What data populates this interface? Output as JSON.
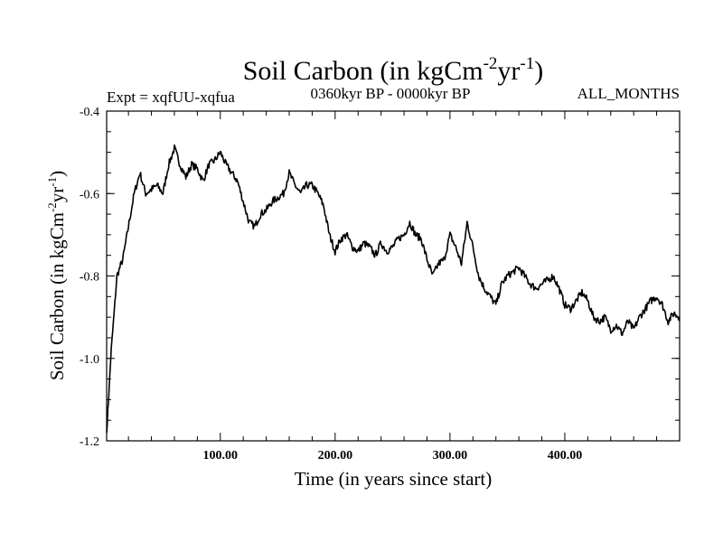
{
  "chart_data": {
    "type": "line",
    "title_main": "Soil Carbon (in kgCm",
    "title_sup1": "-2",
    "title_mid": "yr",
    "title_sup2": "-1",
    "title_end": ")",
    "subtitle_left": "Expt = xqfUU-xqfua",
    "subtitle_center": "0360kyr BP - 0000kyr BP",
    "subtitle_right": "ALL_MONTHS",
    "xlabel": "Time (in years since start)",
    "ylabel_main": "Soil Carbon (in kgCm",
    "ylabel_sup1": "-2",
    "ylabel_mid": "yr",
    "ylabel_sup2": "-1",
    "ylabel_end": ")",
    "xlim": [
      1,
      500
    ],
    "ylim": [
      -1.2,
      -0.4
    ],
    "xticks": [
      100,
      200,
      300,
      400
    ],
    "xtick_labels": [
      "100.00",
      "200.00",
      "300.00",
      "400.00"
    ],
    "yticks": [
      -1.2,
      -1.0,
      -0.8,
      -0.6,
      -0.4
    ],
    "ytick_labels": [
      "-1.2",
      "-1.0",
      "-0.8",
      "-0.6",
      "-0.4"
    ],
    "series": [
      {
        "name": "Soil Carbon",
        "color": "#000000",
        "x": [
          1,
          5,
          10,
          15,
          20,
          25,
          30,
          35,
          40,
          45,
          50,
          55,
          60,
          65,
          70,
          75,
          80,
          85,
          90,
          95,
          100,
          105,
          110,
          115,
          120,
          125,
          130,
          135,
          140,
          145,
          150,
          155,
          160,
          165,
          170,
          175,
          180,
          185,
          190,
          195,
          200,
          205,
          210,
          215,
          220,
          225,
          230,
          235,
          240,
          245,
          250,
          255,
          260,
          265,
          270,
          275,
          280,
          285,
          290,
          295,
          300,
          305,
          310,
          315,
          320,
          325,
          330,
          335,
          340,
          345,
          350,
          355,
          360,
          365,
          370,
          375,
          380,
          385,
          390,
          395,
          400,
          405,
          410,
          415,
          420,
          425,
          430,
          435,
          440,
          445,
          450,
          455,
          460,
          465,
          470,
          475,
          480,
          485,
          490,
          495,
          500
        ],
        "y": [
          -1.18,
          -0.98,
          -0.8,
          -0.76,
          -0.68,
          -0.6,
          -0.55,
          -0.6,
          -0.59,
          -0.58,
          -0.6,
          -0.53,
          -0.49,
          -0.53,
          -0.56,
          -0.53,
          -0.54,
          -0.57,
          -0.53,
          -0.52,
          -0.5,
          -0.53,
          -0.55,
          -0.57,
          -0.62,
          -0.67,
          -0.68,
          -0.65,
          -0.64,
          -0.62,
          -0.61,
          -0.6,
          -0.55,
          -0.58,
          -0.6,
          -0.58,
          -0.58,
          -0.6,
          -0.63,
          -0.7,
          -0.74,
          -0.71,
          -0.7,
          -0.73,
          -0.74,
          -0.72,
          -0.73,
          -0.75,
          -0.72,
          -0.74,
          -0.73,
          -0.71,
          -0.7,
          -0.67,
          -0.7,
          -0.71,
          -0.76,
          -0.8,
          -0.77,
          -0.76,
          -0.7,
          -0.73,
          -0.77,
          -0.67,
          -0.73,
          -0.8,
          -0.83,
          -0.85,
          -0.87,
          -0.82,
          -0.8,
          -0.79,
          -0.78,
          -0.8,
          -0.82,
          -0.83,
          -0.82,
          -0.81,
          -0.8,
          -0.83,
          -0.87,
          -0.88,
          -0.86,
          -0.84,
          -0.86,
          -0.9,
          -0.91,
          -0.9,
          -0.93,
          -0.92,
          -0.94,
          -0.91,
          -0.93,
          -0.9,
          -0.88,
          -0.86,
          -0.85,
          -0.87,
          -0.91,
          -0.89,
          -0.9
        ]
      }
    ]
  }
}
